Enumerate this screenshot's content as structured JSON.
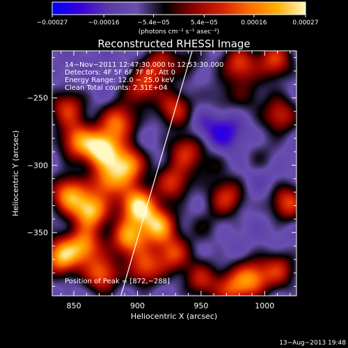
{
  "chart_data": {
    "type": "heatmap",
    "title": "Reconstructed RHESSI Image",
    "xlabel": "Heliocentric X (arcsec)",
    "ylabel": "Heliocentric Y (arcsec)",
    "xlim": [
      833,
      1025
    ],
    "ylim": [
      -397,
      -215
    ],
    "x_ticks": [
      850,
      900,
      950,
      1000
    ],
    "y_ticks": [
      -250,
      -300,
      -350
    ],
    "x_tick_labels": [
      "850",
      "900",
      "950",
      "1000"
    ],
    "y_tick_labels": [
      "−250",
      "−300",
      "−350"
    ],
    "colorbar": {
      "range": [
        -0.00027,
        0.00027
      ],
      "tick_values": [
        -0.00027,
        -0.00016,
        -5.4e-05,
        5.4e-05,
        0.00016,
        0.00027
      ],
      "tick_labels": [
        "−0.00027",
        "−0.00016",
        "−5.4e−05",
        "5.4e−05",
        "0.00016",
        "0.00027"
      ],
      "unit_label": "(photons cm⁻² s⁻¹ asec⁻²)",
      "colors": [
        "#0000ff",
        "#3a00d8",
        "#5a3aa8",
        "#6a50b0",
        "#000000",
        "#8a0000",
        "#d42000",
        "#ff6a00",
        "#ffb000",
        "#fff8c0"
      ]
    },
    "header_lines": [
      "14−Nov−2011 12:47:30.000 to 12:53:30.000",
      "Detectors: 4F 5F 6F 7F 8F, Att 0",
      "Energy Range: 12.0 − 25.0 keV",
      "Clean     Total counts: 2.31E+04"
    ],
    "peak_label": "Position of Peak = [872,−288]",
    "peak": [
      872,
      -288
    ],
    "limb_line": [
      [
        887,
        -397
      ],
      [
        943,
        -215
      ]
    ],
    "background_value": -0.00011,
    "sources": [
      {
        "x": 845,
        "y": -258,
        "value": 9e-05
      },
      {
        "x": 853,
        "y": -282,
        "value": 0.00014
      },
      {
        "x": 872,
        "y": -288,
        "value": 0.00027
      },
      {
        "x": 885,
        "y": -268,
        "value": 0.00014
      },
      {
        "x": 892,
        "y": -300,
        "value": 0.0002
      },
      {
        "x": 877,
        "y": -312,
        "value": 0.00013
      },
      {
        "x": 846,
        "y": -322,
        "value": 0.00018
      },
      {
        "x": 863,
        "y": -334,
        "value": 0.00022
      },
      {
        "x": 900,
        "y": -330,
        "value": 0.00025
      },
      {
        "x": 916,
        "y": -345,
        "value": 0.0002
      },
      {
        "x": 893,
        "y": -354,
        "value": 0.00018
      },
      {
        "x": 858,
        "y": -360,
        "value": 0.00016
      },
      {
        "x": 840,
        "y": -368,
        "value": 0.0002
      },
      {
        "x": 872,
        "y": -381,
        "value": 0.00013
      },
      {
        "x": 906,
        "y": -376,
        "value": 0.00011
      },
      {
        "x": 928,
        "y": -366,
        "value": 0.0001
      },
      {
        "x": 903,
        "y": -242,
        "value": 8e-05
      },
      {
        "x": 917,
        "y": -226,
        "value": 7e-05
      },
      {
        "x": 929,
        "y": -258,
        "value": 9e-05
      },
      {
        "x": 938,
        "y": -290,
        "value": 8e-05
      },
      {
        "x": 928,
        "y": -313,
        "value": 9e-05
      },
      {
        "x": 980,
        "y": -225,
        "value": 0.0001
      },
      {
        "x": 1008,
        "y": -222,
        "value": 0.0001
      },
      {
        "x": 1012,
        "y": -263,
        "value": 8e-05
      },
      {
        "x": 970,
        "y": -324,
        "value": 9e-05
      },
      {
        "x": 1018,
        "y": -328,
        "value": 0.00011
      },
      {
        "x": 990,
        "y": -384,
        "value": 0.00014
      },
      {
        "x": 974,
        "y": -392,
        "value": 9e-05
      },
      {
        "x": 1011,
        "y": -378,
        "value": 7e-05
      },
      {
        "x": 950,
        "y": -385,
        "value": 6e-05
      },
      {
        "x": 965,
        "y": -250,
        "value": -4e-05
      },
      {
        "x": 958,
        "y": -300,
        "value": -4e-05
      },
      {
        "x": 998,
        "y": -295,
        "value": -4e-05
      },
      {
        "x": 987,
        "y": -248,
        "value": -3e-05
      },
      {
        "x": 952,
        "y": -345,
        "value": -4e-05
      },
      {
        "x": 940,
        "y": -222,
        "value": -3e-05
      },
      {
        "x": 969,
        "y": -276,
        "value": -0.00021
      },
      {
        "x": 1000,
        "y": -308,
        "value": -0.00015
      },
      {
        "x": 955,
        "y": -270,
        "value": -0.00016
      },
      {
        "x": 1018,
        "y": -347,
        "value": -0.00012
      },
      {
        "x": 1003,
        "y": -240,
        "value": -0.0001
      },
      {
        "x": 945,
        "y": -330,
        "value": -0.00012
      }
    ]
  },
  "footer": {
    "timestamp": "13−Aug−2013 19:48"
  }
}
